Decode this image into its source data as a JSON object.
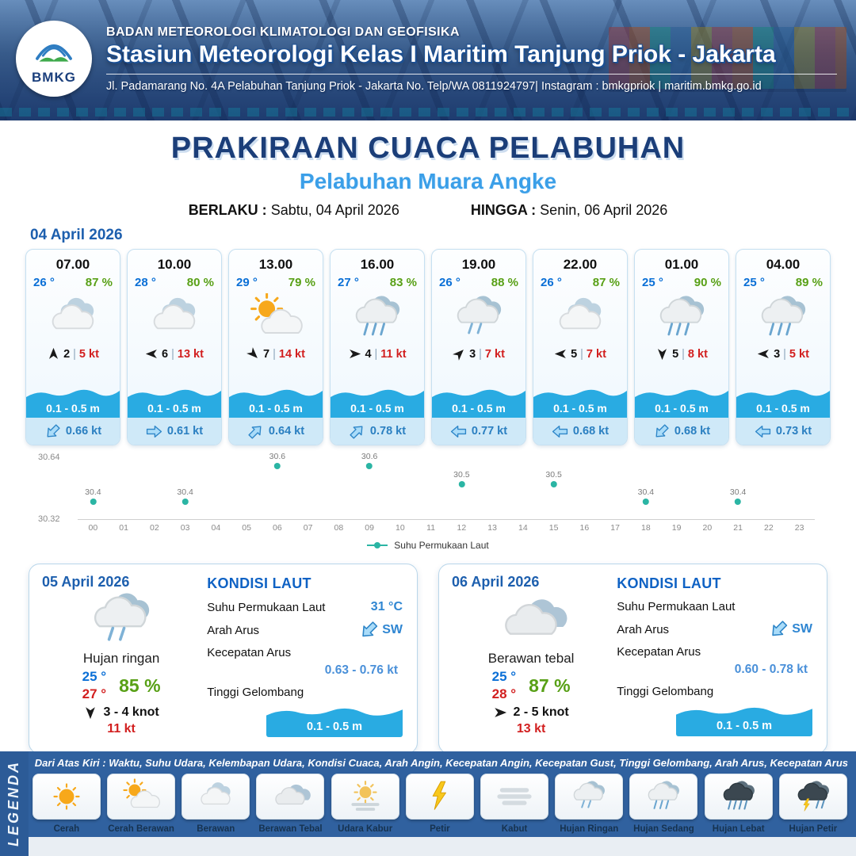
{
  "header": {
    "logo_text": "BMKG",
    "agency": "BADAN METEOROLOGI KLIMATOLOGI DAN GEOFISIKA",
    "station": "Stasiun Meteorologi Kelas I Maritim Tanjung Priok - Jakarta",
    "address": "Jl. Padamarang No. 4A Pelabuhan Tanjung Priok - Jakarta No. Telp/WA 0811924797| Instagram : bmkgpriok | maritim.bmkg.go.id"
  },
  "title": {
    "main": "PRAKIRAAN CUACA PELABUHAN",
    "port": "Pelabuhan Muara Angke",
    "valid_label": "BERLAKU :",
    "valid_value": "Sabtu, 04 April 2026",
    "until_label": "HINGGA :",
    "until_value": "Senin, 06 April 2026"
  },
  "forecast": {
    "date": "04 April 2026",
    "hours": [
      {
        "time": "07.00",
        "temp": "26 °",
        "rh": "87 %",
        "icon": "berawan",
        "wind_dir": "N",
        "wind": "2",
        "gust": "5 kt",
        "wave": "0.1 - 0.5 m",
        "current_dir": "SW",
        "current": "0.66 kt"
      },
      {
        "time": "10.00",
        "temp": "28 °",
        "rh": "80 %",
        "icon": "berawan",
        "wind_dir": "W",
        "wind": "6",
        "gust": "13 kt",
        "wave": "0.1 - 0.5 m",
        "current_dir": "E",
        "current": "0.61 kt"
      },
      {
        "time": "13.00",
        "temp": "29 °",
        "rh": "79 %",
        "icon": "cerah-berawan",
        "wind_dir": "SE",
        "wind": "7",
        "gust": "14 kt",
        "wave": "0.1 - 0.5 m",
        "current_dir": "NE",
        "current": "0.64 kt"
      },
      {
        "time": "16.00",
        "temp": "27 °",
        "rh": "83 %",
        "icon": "hujan-sedang",
        "wind_dir": "E",
        "wind": "4",
        "gust": "11 kt",
        "wave": "0.1 - 0.5 m",
        "current_dir": "NE",
        "current": "0.78 kt"
      },
      {
        "time": "19.00",
        "temp": "26 °",
        "rh": "88 %",
        "icon": "hujan-ringan",
        "wind_dir": "NE",
        "wind": "3",
        "gust": "7 kt",
        "wave": "0.1 - 0.5 m",
        "current_dir": "W",
        "current": "0.77 kt"
      },
      {
        "time": "22.00",
        "temp": "26 °",
        "rh": "87 %",
        "icon": "berawan",
        "wind_dir": "W",
        "wind": "5",
        "gust": "7 kt",
        "wave": "0.1 - 0.5 m",
        "current_dir": "W",
        "current": "0.68 kt"
      },
      {
        "time": "01.00",
        "temp": "25 °",
        "rh": "90 %",
        "icon": "hujan-sedang",
        "wind_dir": "S",
        "wind": "5",
        "gust": "8 kt",
        "wave": "0.1 - 0.5 m",
        "current_dir": "SW",
        "current": "0.68 kt"
      },
      {
        "time": "04.00",
        "temp": "25 °",
        "rh": "89 %",
        "icon": "hujan-sedang",
        "wind_dir": "W",
        "wind": "3",
        "gust": "5 kt",
        "wave": "0.1 - 0.5 m",
        "current_dir": "W",
        "current": "0.73 kt"
      }
    ]
  },
  "chart_data": {
    "type": "scatter",
    "x": [
      0,
      3,
      6,
      9,
      12,
      15,
      18,
      21
    ],
    "values": [
      30.4,
      30.4,
      30.6,
      30.6,
      30.5,
      30.5,
      30.4,
      30.4
    ],
    "xticks": [
      "00",
      "01",
      "02",
      "03",
      "04",
      "05",
      "06",
      "07",
      "08",
      "09",
      "10",
      "11",
      "12",
      "13",
      "14",
      "15",
      "16",
      "17",
      "18",
      "19",
      "20",
      "21",
      "22",
      "23"
    ],
    "ylim": [
      30.32,
      30.64
    ],
    "ytick_labels": [
      "30.64",
      "30.32"
    ],
    "legend": "Suhu Permukaan Laut",
    "dot_color": "#2bb5a4",
    "grid": false
  },
  "days": [
    {
      "date": "05 April 2026",
      "icon": "hujan-ringan",
      "condition": "Hujan ringan",
      "temp_min": "25 °",
      "temp_max": "27 °",
      "rh": "85 %",
      "wind_dir": "S",
      "wind": "3 - 4 knot",
      "gust": "11 kt",
      "sea": {
        "title": "KONDISI LAUT",
        "sst_label": "Suhu Permukaan Laut",
        "sst": "31 °C",
        "current_dir_label": "Arah Arus",
        "current_dir": "SW",
        "current_speed_label": "Kecepatan Arus",
        "current_speed": "0.63 - 0.76 kt",
        "wave_label": "Tinggi Gelombang",
        "wave": "0.1 - 0.5 m"
      }
    },
    {
      "date": "06 April 2026",
      "icon": "berawan-tebal",
      "condition": "Berawan tebal",
      "temp_min": "25 °",
      "temp_max": "28 °",
      "rh": "87 %",
      "wind_dir": "E",
      "wind": "2 - 5 knot",
      "gust": "13 kt",
      "sea": {
        "title": "KONDISI LAUT",
        "sst_label": "Suhu Permukaan Laut",
        "sst": "",
        "current_dir_label": "Arah Arus",
        "current_dir": "SW",
        "current_speed_label": "Kecepatan Arus",
        "current_speed": "0.60 - 0.78 kt",
        "wave_label": "Tinggi Gelombang",
        "wave": "0.1 - 0.5 m"
      }
    }
  ],
  "legend": {
    "title": "LEGENDA",
    "description": "Dari Atas Kiri : Waktu, Suhu Udara, Kelembapan Udara, Kondisi Cuaca, Arah Angin, Kecepatan Angin, Kecepatan Gust, Tinggi Gelombang, Arah Arus, Kecepatan Arus",
    "items": [
      {
        "label": "Cerah",
        "icon": "cerah"
      },
      {
        "label": "Cerah Berawan",
        "icon": "cerah-berawan"
      },
      {
        "label": "Berawan",
        "icon": "berawan"
      },
      {
        "label": "Berawan Tebal",
        "icon": "berawan-tebal"
      },
      {
        "label": "Udara Kabur",
        "icon": "udara-kabur"
      },
      {
        "label": "Petir",
        "icon": "petir"
      },
      {
        "label": "Kabut",
        "icon": "kabut"
      },
      {
        "label": "Hujan Ringan",
        "icon": "hujan-ringan"
      },
      {
        "label": "Hujan Sedang",
        "icon": "hujan-sedang"
      },
      {
        "label": "Hujan Lebat",
        "icon": "hujan-lebat"
      },
      {
        "label": "Hujan Petir",
        "icon": "hujan-petir"
      }
    ]
  },
  "colors": {
    "header_blue": "#2a5791",
    "title_navy": "#1b3e79",
    "port_blue": "#3b9fe8",
    "temp_blue": "#0a6fd6",
    "rh_green": "#58a016",
    "gust_red": "#d21f1f",
    "wave_blue": "#29abe2",
    "current_blue": "#2a7fc1",
    "dot_teal": "#2bb5a4",
    "footer_blue": "#30619f"
  }
}
